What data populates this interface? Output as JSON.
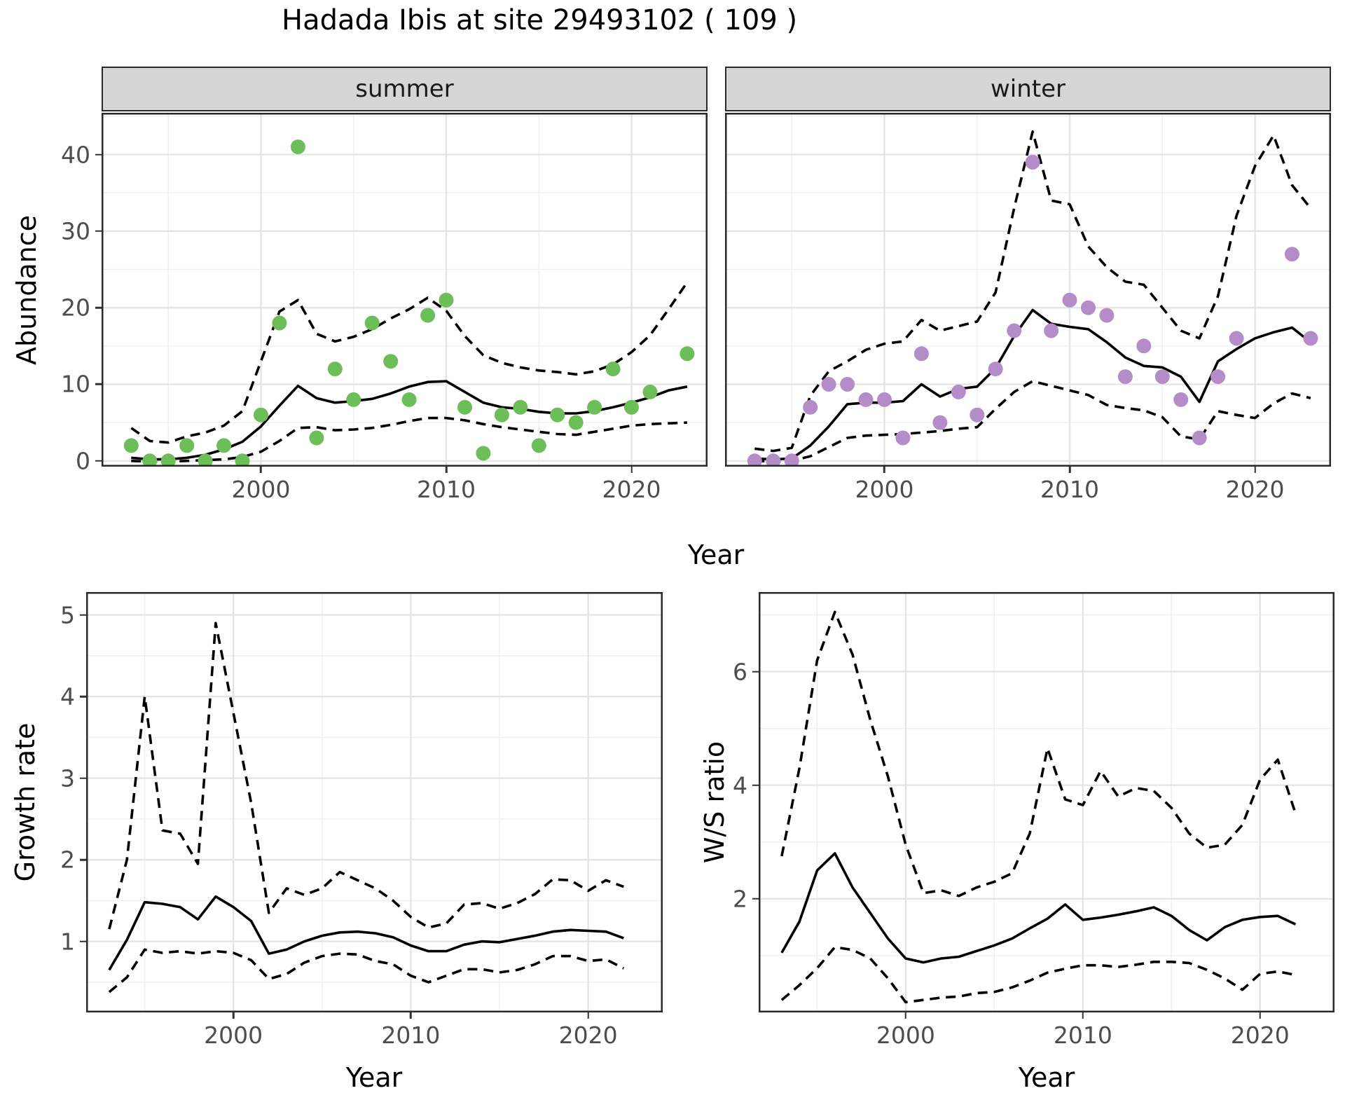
{
  "title": "Hadada Ibis at site 29493102 ( 109 )",
  "colors": {
    "summer_points": "#6CBE59",
    "winter_points": "#B48CC8",
    "line": "#000000",
    "grid_major": "#E3E3E3",
    "grid_minor": "#EFEFEF",
    "panel_border": "#2A2A2A",
    "strip_fill": "#D6D6D6",
    "tick_label": "#4D4D4D"
  },
  "chart_data": [
    {
      "type": "line+scatter",
      "facet_label": "summer",
      "xlabel": "Year",
      "ylabel": "Abundance",
      "xlim": [
        1991.4,
        2024.1
      ],
      "ylim": [
        -0.75,
        45.45
      ],
      "x_ticks": [
        2000,
        2010,
        2020
      ],
      "x_minor": [
        1995,
        2005,
        2015
      ],
      "y_ticks": [
        0,
        10,
        20,
        30,
        40
      ],
      "y_minor": [
        5,
        15,
        25,
        35,
        45
      ],
      "points": {
        "color_key": "summer_points",
        "x": [
          1993,
          1994,
          1995,
          1996,
          1997,
          1998,
          1999,
          2000,
          2001,
          2002,
          2003,
          2004,
          2005,
          2006,
          2007,
          2008,
          2009,
          2010,
          2011,
          2012,
          2013,
          2014,
          2015,
          2016,
          2017,
          2018,
          2019,
          2020,
          2021,
          2023
        ],
        "y": [
          2,
          0,
          0,
          2,
          0,
          2,
          0,
          6,
          18,
          41,
          3,
          12,
          8,
          18,
          13,
          8,
          19,
          21,
          7,
          1,
          6,
          7,
          2,
          6,
          5,
          7,
          12,
          7,
          9,
          14
        ]
      },
      "series": [
        {
          "name": "fit",
          "style": "solid",
          "x": [
            1993,
            1994,
            1995,
            1996,
            1997,
            1998,
            1999,
            2000,
            2001,
            2002,
            2003,
            2004,
            2005,
            2006,
            2007,
            2008,
            2009,
            2010,
            2011,
            2012,
            2013,
            2014,
            2015,
            2016,
            2017,
            2018,
            2019,
            2020,
            2021,
            2022,
            2023
          ],
          "y": [
            0.4,
            0.2,
            0.2,
            0.4,
            0.8,
            1.5,
            2.5,
            4.5,
            7.2,
            9.8,
            8.2,
            7.6,
            7.8,
            8.1,
            8.8,
            9.7,
            10.3,
            10.4,
            9.0,
            7.6,
            7.0,
            6.8,
            6.4,
            6.2,
            6.2,
            6.5,
            7.0,
            7.6,
            8.3,
            9.2,
            9.7
          ]
        },
        {
          "name": "upper_ci",
          "style": "dashed",
          "x": [
            1993,
            1994,
            1995,
            1996,
            1997,
            1998,
            1999,
            2000,
            2001,
            2002,
            2003,
            2004,
            2005,
            2006,
            2007,
            2008,
            2009,
            2010,
            2011,
            2012,
            2013,
            2014,
            2015,
            2016,
            2017,
            2018,
            2019,
            2020,
            2021,
            2022,
            2023
          ],
          "y": [
            4.3,
            2.6,
            2.4,
            3.2,
            3.7,
            4.6,
            6.5,
            13.0,
            19.5,
            21.0,
            16.6,
            15.6,
            16.2,
            17.2,
            18.6,
            19.8,
            21.3,
            19.6,
            16.3,
            13.8,
            12.8,
            12.2,
            11.8,
            11.6,
            11.3,
            11.7,
            12.6,
            14.2,
            16.4,
            19.8,
            23.3
          ]
        },
        {
          "name": "lower_ci",
          "style": "dashed",
          "x": [
            1993,
            1994,
            1995,
            1996,
            1997,
            1998,
            1999,
            2000,
            2001,
            2002,
            2003,
            2004,
            2005,
            2006,
            2007,
            2008,
            2009,
            2010,
            2011,
            2012,
            2013,
            2014,
            2015,
            2016,
            2017,
            2018,
            2019,
            2020,
            2021,
            2022,
            2023
          ],
          "y": [
            0.0,
            -0.1,
            -0.1,
            0.0,
            0.1,
            0.2,
            0.5,
            1.2,
            2.6,
            4.3,
            4.4,
            4.0,
            4.1,
            4.3,
            4.7,
            5.2,
            5.6,
            5.6,
            5.3,
            4.8,
            4.4,
            4.1,
            3.8,
            3.5,
            3.4,
            3.8,
            4.2,
            4.6,
            4.8,
            4.9,
            5.0
          ]
        }
      ]
    },
    {
      "type": "line+scatter",
      "facet_label": "winter",
      "xlabel": "Year",
      "ylabel": "Abundance",
      "xlim": [
        1991.4,
        2024.1
      ],
      "ylim": [
        -0.75,
        45.45
      ],
      "x_ticks": [
        2000,
        2010,
        2020
      ],
      "x_minor": [
        1995,
        2005,
        2015
      ],
      "y_ticks": [
        0,
        10,
        20,
        30,
        40
      ],
      "y_minor": [
        5,
        15,
        25,
        35,
        45
      ],
      "points": {
        "color_key": "winter_points",
        "x": [
          1993,
          1994,
          1995,
          1996,
          1997,
          1998,
          1999,
          2000,
          2001,
          2002,
          2003,
          2004,
          2005,
          2006,
          2007,
          2008,
          2009,
          2010,
          2011,
          2012,
          2013,
          2014,
          2015,
          2016,
          2017,
          2018,
          2019,
          2022,
          2023
        ],
        "y": [
          0,
          0,
          0,
          7,
          10,
          10,
          8,
          8,
          3,
          14,
          5,
          9,
          6,
          12,
          17,
          39,
          17,
          21,
          20,
          19,
          11,
          15,
          11,
          8,
          3,
          11,
          16,
          27,
          16
        ]
      },
      "series": [
        {
          "name": "fit",
          "style": "solid",
          "x": [
            1993,
            1994,
            1995,
            1996,
            1997,
            1998,
            1999,
            2000,
            2001,
            2002,
            2003,
            2004,
            2005,
            2006,
            2007,
            2008,
            2009,
            2010,
            2011,
            2012,
            2013,
            2014,
            2015,
            2016,
            2017,
            2018,
            2019,
            2020,
            2021,
            2022,
            2023
          ],
          "y": [
            0.3,
            0.2,
            0.3,
            2.0,
            4.5,
            7.4,
            7.6,
            7.6,
            7.8,
            10.0,
            8.4,
            9.4,
            9.7,
            12.1,
            16.3,
            19.7,
            17.9,
            17.5,
            17.2,
            15.5,
            13.5,
            12.4,
            12.2,
            11.0,
            7.7,
            13.0,
            14.6,
            16.0,
            16.8,
            17.4,
            15.5
          ]
        },
        {
          "name": "upper_ci",
          "style": "dashed",
          "x": [
            1993,
            1994,
            1995,
            1996,
            1997,
            1998,
            1999,
            2000,
            2001,
            2002,
            2003,
            2004,
            2005,
            2006,
            2007,
            2008,
            2009,
            2010,
            2011,
            2012,
            2013,
            2014,
            2015,
            2016,
            2017,
            2018,
            2019,
            2020,
            2021,
            2022,
            2023
          ],
          "y": [
            1.6,
            1.3,
            1.7,
            8.5,
            11.7,
            13.0,
            14.5,
            15.3,
            15.6,
            18.4,
            17.0,
            17.6,
            18.2,
            22.0,
            33.0,
            43.0,
            34.0,
            33.5,
            28.0,
            25.3,
            23.4,
            23.0,
            20.0,
            17.0,
            16.0,
            21.5,
            32.0,
            38.5,
            42.5,
            36.0,
            33.0
          ]
        },
        {
          "name": "lower_ci",
          "style": "dashed",
          "x": [
            1993,
            1994,
            1995,
            1996,
            1997,
            1998,
            1999,
            2000,
            2001,
            2002,
            2003,
            2004,
            2005,
            2006,
            2007,
            2008,
            2009,
            2010,
            2011,
            2012,
            2013,
            2014,
            2015,
            2016,
            2017,
            2018,
            2019,
            2020,
            2021,
            2022,
            2023
          ],
          "y": [
            0.0,
            -0.1,
            0.0,
            0.6,
            1.8,
            3.0,
            3.3,
            3.4,
            3.5,
            3.7,
            3.9,
            4.2,
            4.4,
            6.8,
            9.0,
            10.4,
            9.8,
            9.2,
            8.6,
            7.3,
            6.9,
            6.6,
            5.7,
            3.2,
            2.8,
            6.5,
            6.0,
            5.6,
            7.5,
            8.8,
            8.2
          ]
        }
      ]
    },
    {
      "type": "line",
      "xlabel": "Year",
      "ylabel": "Growth rate",
      "xlim": [
        1991.7,
        2024.2
      ],
      "ylim": [
        0.13,
        5.28
      ],
      "x_ticks": [
        2000,
        2010,
        2020
      ],
      "x_minor": [
        1995,
        2005,
        2015
      ],
      "y_ticks": [
        1,
        2,
        3,
        4,
        5
      ],
      "y_minor": [
        0.5,
        1.5,
        2.5,
        3.5,
        4.5
      ],
      "series": [
        {
          "name": "fit",
          "style": "solid",
          "x": [
            1993,
            1994,
            1995,
            1996,
            1997,
            1998,
            1999,
            2000,
            2001,
            2002,
            2003,
            2004,
            2005,
            2006,
            2007,
            2008,
            2009,
            2010,
            2011,
            2012,
            2013,
            2014,
            2015,
            2016,
            2017,
            2018,
            2019,
            2020,
            2021,
            2022
          ],
          "y": [
            0.65,
            1.02,
            1.48,
            1.46,
            1.42,
            1.27,
            1.55,
            1.42,
            1.25,
            0.85,
            0.9,
            1.0,
            1.07,
            1.11,
            1.12,
            1.1,
            1.05,
            0.95,
            0.88,
            0.88,
            0.96,
            1.0,
            0.99,
            1.03,
            1.07,
            1.12,
            1.14,
            1.13,
            1.12,
            1.04
          ]
        },
        {
          "name": "upper_ci",
          "style": "dashed",
          "x": [
            1993,
            1994,
            1995,
            1996,
            1997,
            1998,
            1999,
            2000,
            2001,
            2002,
            2003,
            2004,
            2005,
            2006,
            2007,
            2008,
            2009,
            2010,
            2011,
            2012,
            2013,
            2014,
            2015,
            2016,
            2017,
            2018,
            2019,
            2020,
            2021,
            2022
          ],
          "y": [
            1.15,
            2.0,
            4.0,
            2.36,
            2.32,
            1.95,
            4.9,
            3.8,
            2.7,
            1.35,
            1.65,
            1.57,
            1.65,
            1.85,
            1.75,
            1.65,
            1.5,
            1.3,
            1.17,
            1.22,
            1.45,
            1.47,
            1.4,
            1.47,
            1.58,
            1.76,
            1.75,
            1.62,
            1.75,
            1.67
          ]
        },
        {
          "name": "lower_ci",
          "style": "dashed",
          "x": [
            1993,
            1994,
            1995,
            1996,
            1997,
            1998,
            1999,
            2000,
            2001,
            2002,
            2003,
            2004,
            2005,
            2006,
            2007,
            2008,
            2009,
            2010,
            2011,
            2012,
            2013,
            2014,
            2015,
            2016,
            2017,
            2018,
            2019,
            2020,
            2021,
            2022
          ],
          "y": [
            0.38,
            0.56,
            0.9,
            0.86,
            0.88,
            0.85,
            0.88,
            0.86,
            0.77,
            0.54,
            0.6,
            0.74,
            0.82,
            0.85,
            0.84,
            0.76,
            0.72,
            0.58,
            0.5,
            0.58,
            0.66,
            0.66,
            0.62,
            0.65,
            0.72,
            0.82,
            0.82,
            0.76,
            0.78,
            0.67
          ]
        }
      ]
    },
    {
      "type": "line",
      "xlabel": "Year",
      "ylabel": "W/S ratio",
      "xlim": [
        1991.7,
        2024.2
      ],
      "ylim": [
        0.0,
        7.4
      ],
      "x_ticks": [
        2000,
        2010,
        2020
      ],
      "x_minor": [
        1995,
        2005,
        2015
      ],
      "y_ticks": [
        2,
        4,
        6
      ],
      "y_minor": [
        1,
        3,
        5,
        7
      ],
      "series": [
        {
          "name": "fit",
          "style": "solid",
          "x": [
            1993,
            1994,
            1995,
            1996,
            1997,
            1998,
            1999,
            2000,
            2001,
            2002,
            2003,
            2004,
            2005,
            2006,
            2007,
            2008,
            2009,
            2010,
            2011,
            2012,
            2013,
            2014,
            2015,
            2016,
            2017,
            2018,
            2019,
            2020,
            2021,
            2022
          ],
          "y": [
            1.05,
            1.6,
            2.5,
            2.8,
            2.2,
            1.75,
            1.3,
            0.95,
            0.88,
            0.95,
            0.98,
            1.08,
            1.18,
            1.3,
            1.48,
            1.65,
            1.9,
            1.63,
            1.67,
            1.72,
            1.78,
            1.85,
            1.7,
            1.45,
            1.27,
            1.5,
            1.63,
            1.68,
            1.7,
            1.55
          ]
        },
        {
          "name": "upper_ci",
          "style": "dashed",
          "x": [
            1993,
            1994,
            1995,
            1996,
            1997,
            1998,
            1999,
            2000,
            2001,
            2002,
            2003,
            2004,
            2005,
            2006,
            2007,
            2008,
            2009,
            2010,
            2011,
            2012,
            2013,
            2014,
            2015,
            2016,
            2017,
            2018,
            2019,
            2020,
            2021,
            2022
          ],
          "y": [
            2.75,
            4.3,
            6.2,
            7.05,
            6.3,
            5.15,
            4.15,
            2.95,
            2.1,
            2.15,
            2.05,
            2.2,
            2.3,
            2.45,
            3.15,
            4.65,
            3.75,
            3.65,
            4.25,
            3.8,
            3.95,
            3.9,
            3.6,
            3.15,
            2.9,
            2.95,
            3.3,
            4.1,
            4.45,
            3.5
          ]
        },
        {
          "name": "lower_ci",
          "style": "dashed",
          "x": [
            1993,
            1994,
            1995,
            1996,
            1997,
            1998,
            1999,
            2000,
            2001,
            2002,
            2003,
            2004,
            2005,
            2006,
            2007,
            2008,
            2009,
            2010,
            2011,
            2012,
            2013,
            2014,
            2015,
            2016,
            2017,
            2018,
            2019,
            2020,
            2021,
            2022
          ],
          "y": [
            0.22,
            0.48,
            0.78,
            1.15,
            1.1,
            0.95,
            0.6,
            0.18,
            0.22,
            0.26,
            0.28,
            0.34,
            0.36,
            0.44,
            0.56,
            0.7,
            0.77,
            0.83,
            0.83,
            0.8,
            0.84,
            0.89,
            0.89,
            0.87,
            0.75,
            0.6,
            0.4,
            0.68,
            0.72,
            0.66
          ]
        }
      ]
    }
  ]
}
